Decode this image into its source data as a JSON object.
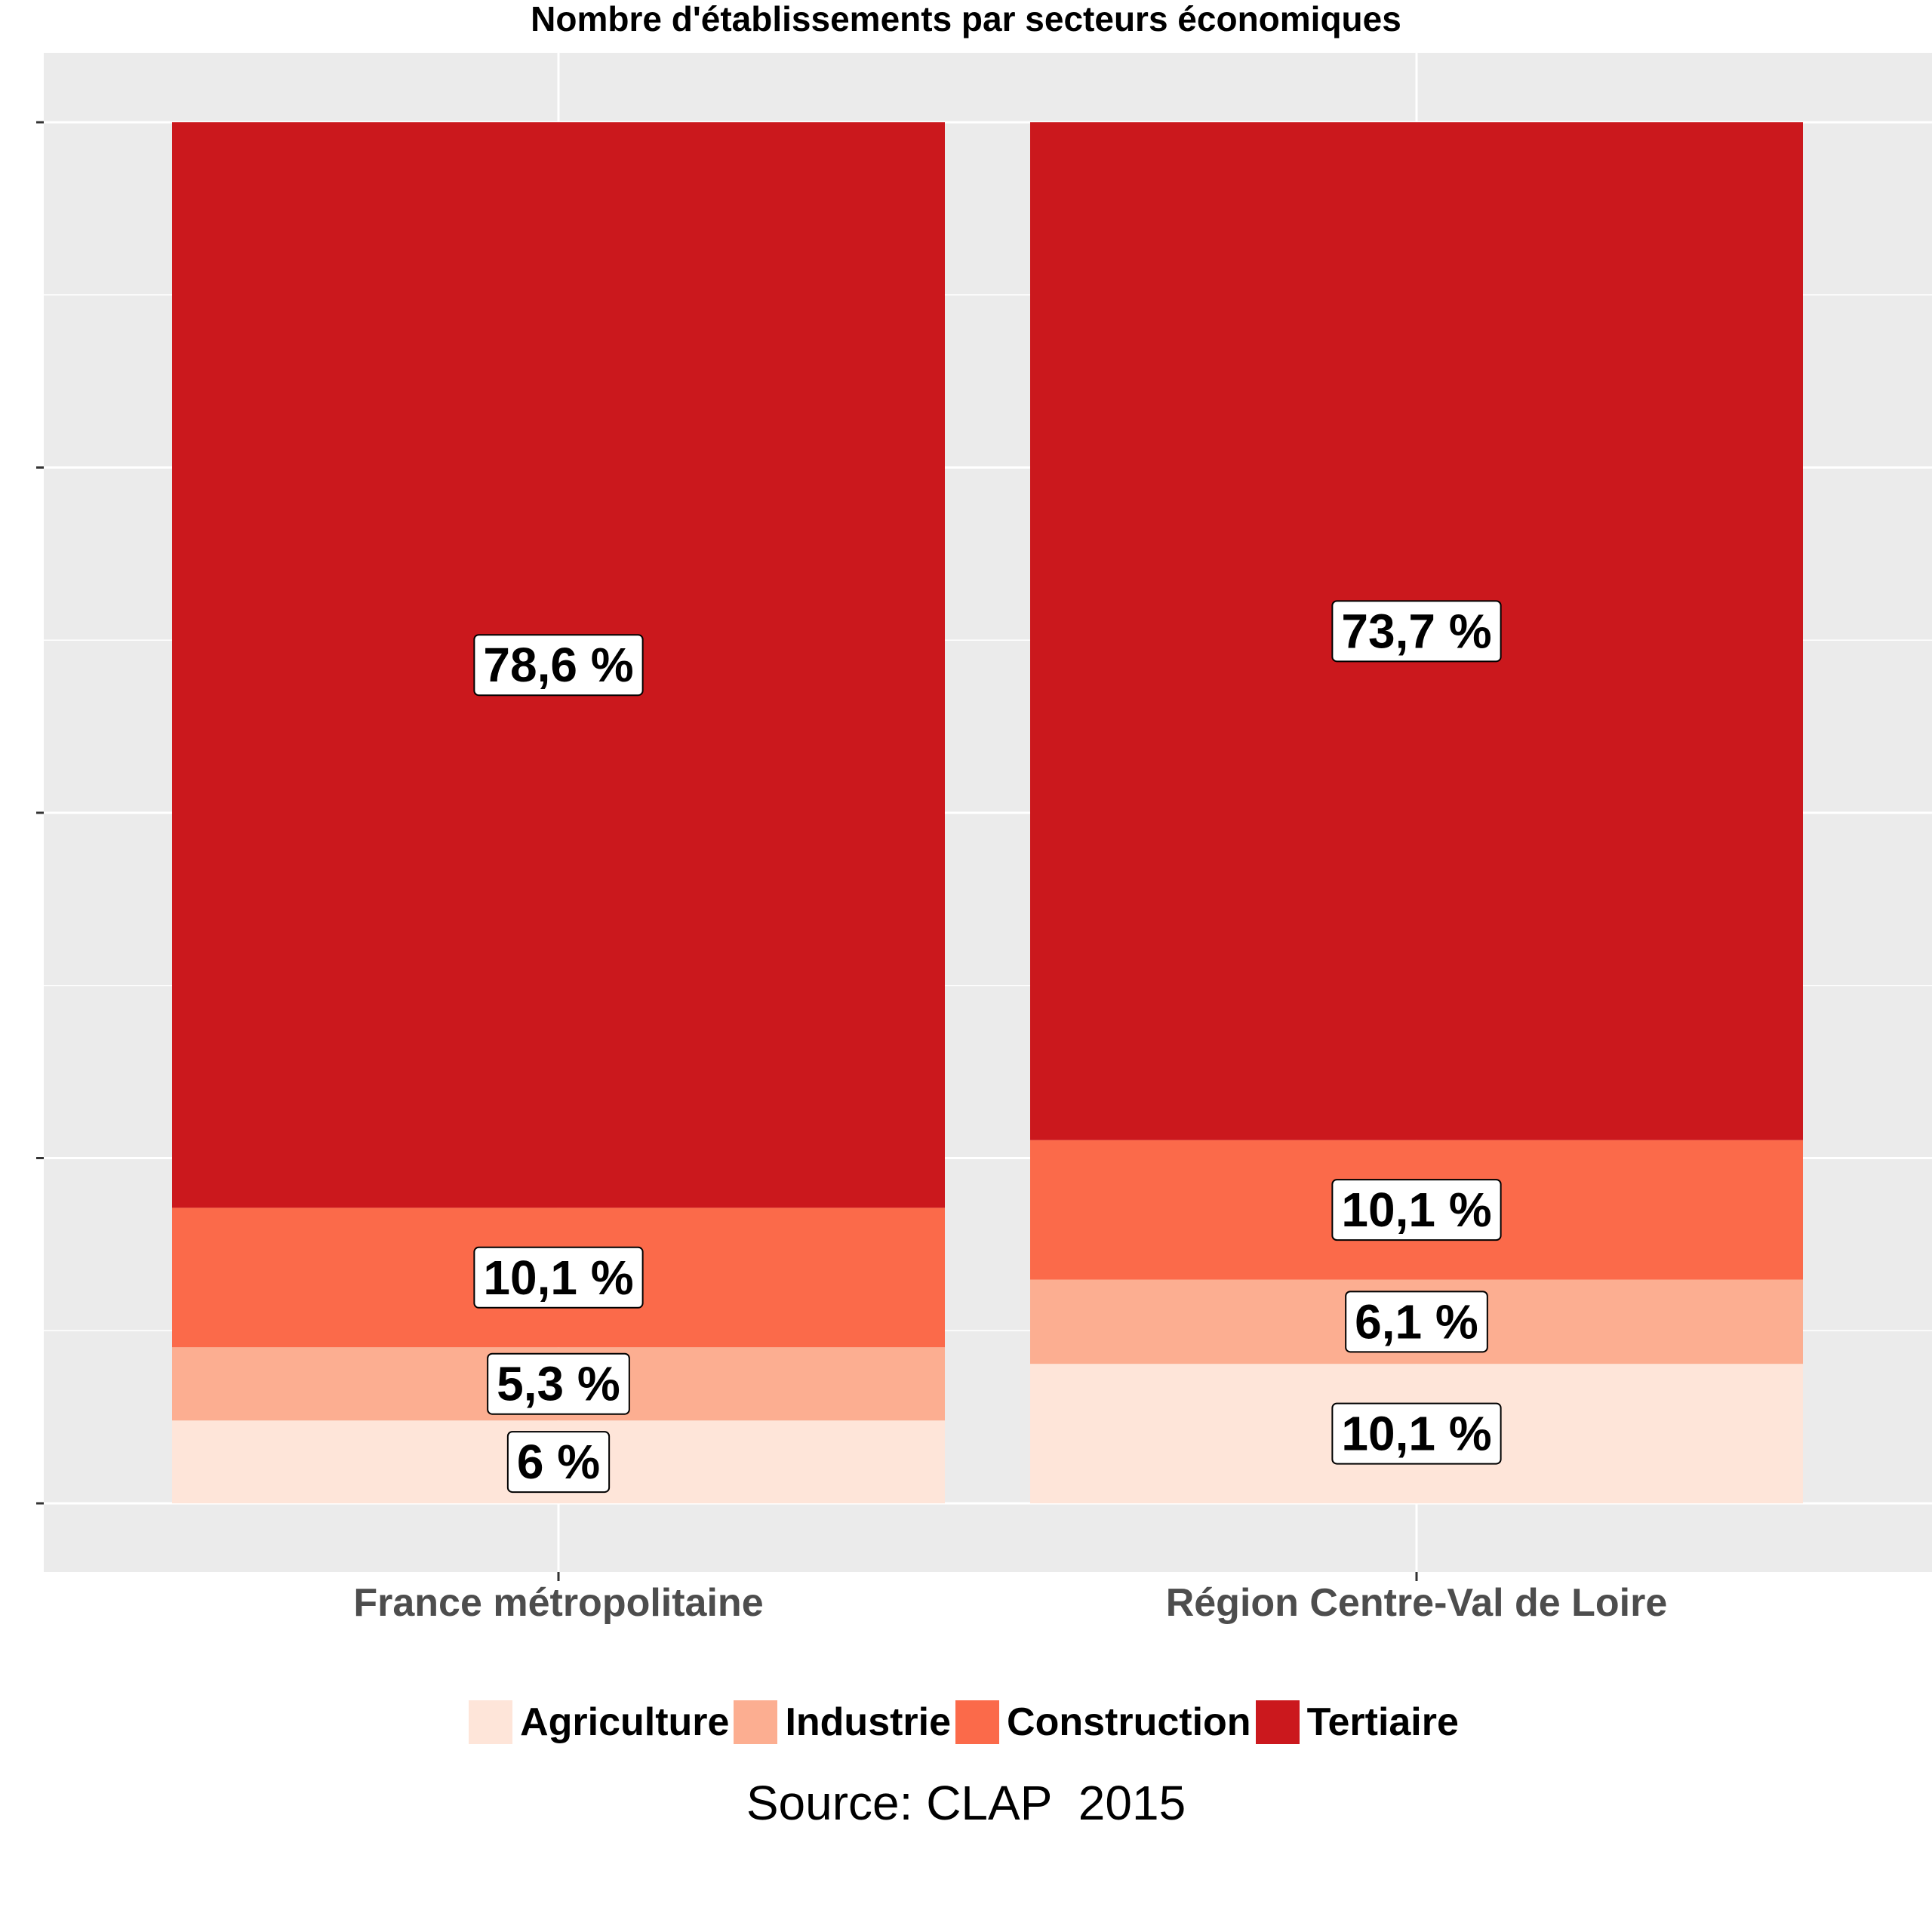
{
  "chart_data": {
    "type": "bar",
    "stacked": true,
    "title": "Nombre d'établissements par secteurs économiques",
    "categories": [
      "France métropolitaine",
      "Région Centre-Val de Loire"
    ],
    "series": [
      {
        "name": "Agriculture",
        "color": "#FEE5D9",
        "values": [
          6,
          10.1
        ],
        "labels": [
          "6 %",
          "10,1 %"
        ]
      },
      {
        "name": "Industrie",
        "color": "#FCAE91",
        "values": [
          5.3,
          6.1
        ],
        "labels": [
          "5,3 %",
          "6,1 %"
        ]
      },
      {
        "name": "Construction",
        "color": "#FB6A4A",
        "values": [
          10.1,
          10.1
        ],
        "labels": [
          "10,1 %",
          "10,1 %"
        ]
      },
      {
        "name": "Tertiaire",
        "color": "#CB181D",
        "values": [
          78.6,
          73.7
        ],
        "labels": [
          "78,6 %",
          "73,7 %"
        ]
      }
    ],
    "ylim": [
      0,
      100
    ],
    "y_ticks": [
      0,
      25,
      50,
      75,
      100
    ],
    "y_tick_labels_shown": false,
    "grid": true,
    "legend_position": "bottom",
    "caption": "Source: CLAP  2015"
  }
}
